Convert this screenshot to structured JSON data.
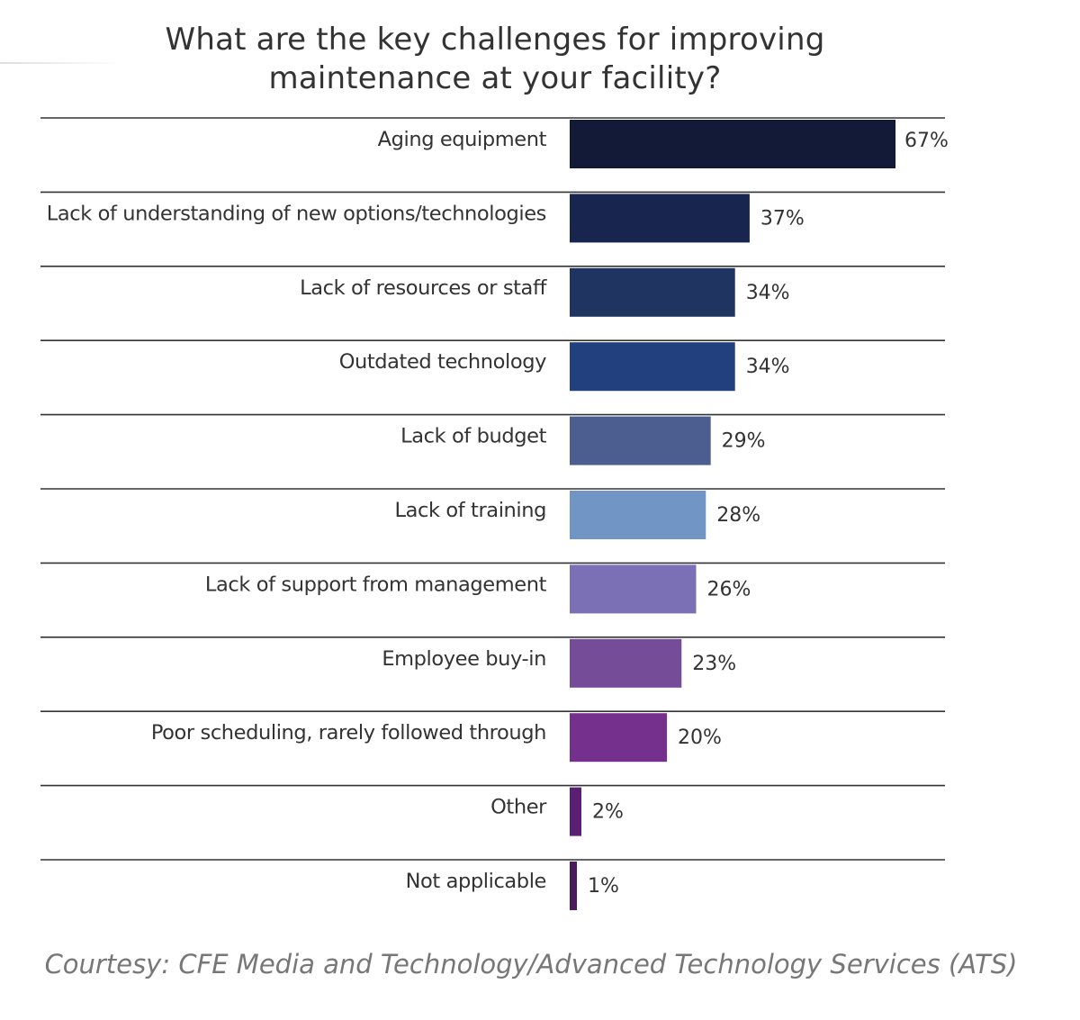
{
  "title_lines": [
    "What are the key challenges for improving",
    "maintenance at your facility?"
  ],
  "courtesy": "Courtesy: CFE Media and Technology/Advanced Technology Services (ATS)",
  "chart_data": {
    "type": "bar",
    "orientation": "horizontal",
    "title": "What are the key challenges for improving maintenance at your facility?",
    "categories": [
      "Aging equipment",
      "Lack of understanding of new options/technologies",
      "Lack of resources or staff",
      "Outdated technology",
      "Lack of budget",
      "Lack of training",
      "Lack of support from management",
      "Employee buy-in",
      "Poor scheduling, rarely followed through",
      "Other",
      "Not applicable"
    ],
    "values": [
      67,
      37,
      34,
      34,
      29,
      28,
      26,
      23,
      20,
      2,
      1
    ],
    "value_labels": [
      "67%",
      "37%",
      "34%",
      "34%",
      "29%",
      "28%",
      "26%",
      "23%",
      "20%",
      "2%",
      "1%"
    ],
    "unit": "%",
    "colors": [
      "#121a38",
      "#17254f",
      "#203461",
      "#22407e",
      "#4b5e8f",
      "#7195c5",
      "#7b6fb5",
      "#744c97",
      "#74308c",
      "#5a1f73",
      "#4a1a5c"
    ],
    "xlim": [
      0,
      100
    ],
    "grid": false,
    "legend": "none"
  }
}
